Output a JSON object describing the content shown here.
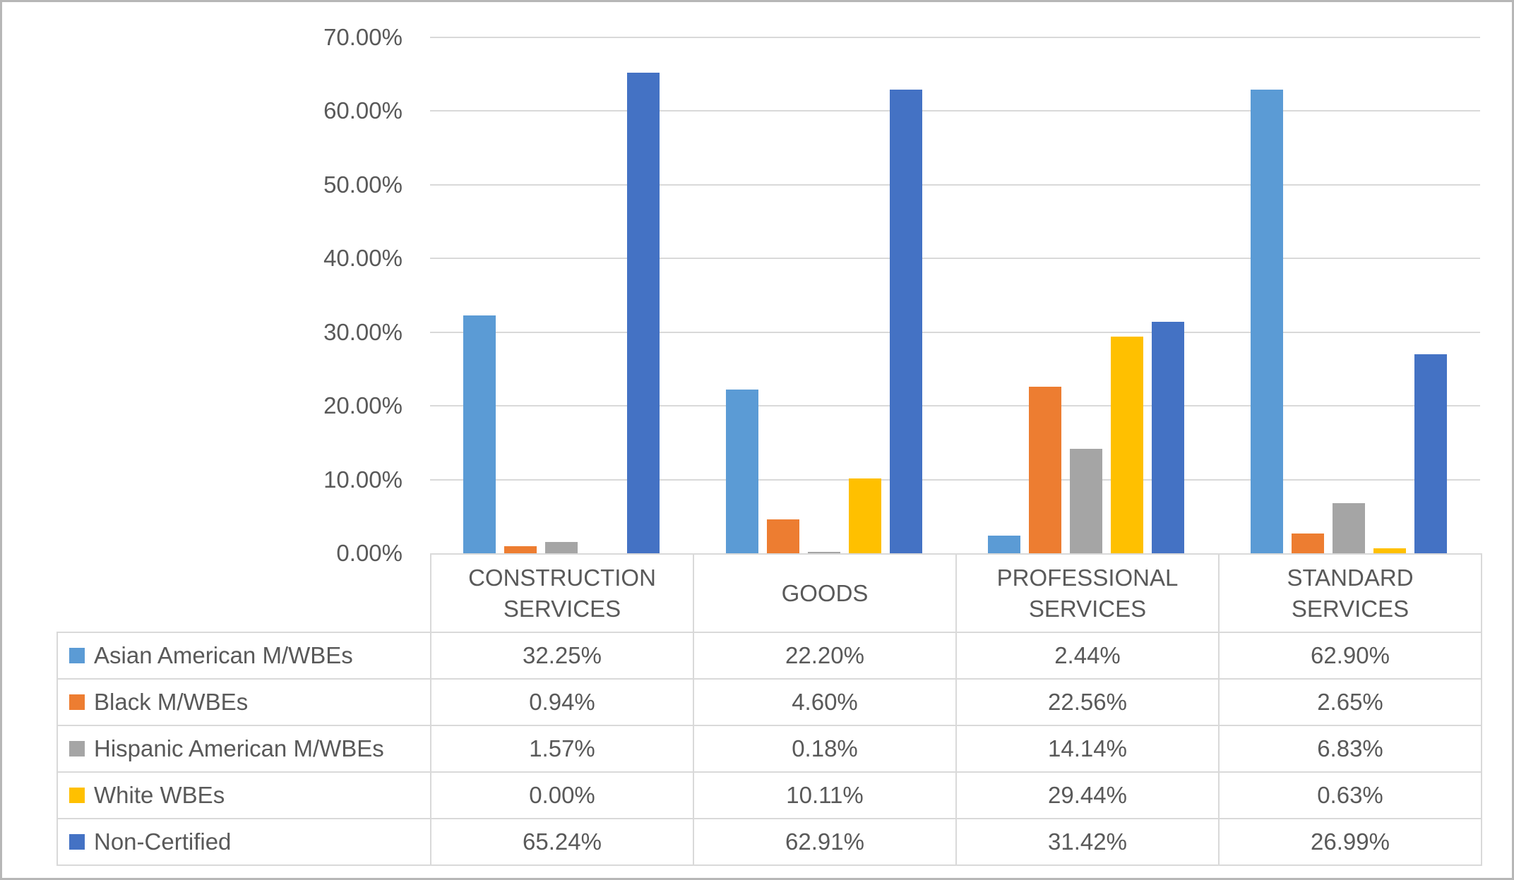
{
  "chart_data": {
    "type": "bar",
    "title": "",
    "categories": [
      "CONSTRUCTION SERVICES",
      "GOODS",
      "PROFESSIONAL SERVICES",
      "STANDARD SERVICES"
    ],
    "series": [
      {
        "name": "Asian American M/WBEs",
        "color": "#5B9BD5",
        "values": [
          32.25,
          22.2,
          2.44,
          62.9
        ]
      },
      {
        "name": "Black M/WBEs",
        "color": "#ED7D31",
        "values": [
          0.94,
          4.6,
          22.56,
          2.65
        ]
      },
      {
        "name": "Hispanic American M/WBEs",
        "color": "#A5A5A5",
        "values": [
          1.57,
          0.18,
          14.14,
          6.83
        ]
      },
      {
        "name": "White WBEs",
        "color": "#FFC000",
        "values": [
          0.0,
          10.11,
          29.44,
          0.63
        ]
      },
      {
        "name": "Non-Certified",
        "color": "#4472C4",
        "values": [
          65.24,
          62.91,
          31.42,
          26.99
        ]
      }
    ],
    "xlabel": "",
    "ylabel": "",
    "ylim": [
      0,
      70
    ],
    "y_axis": {
      "min": 0,
      "max": 70,
      "step": 10,
      "tick_labels": [
        "0.00%",
        "10.00%",
        "20.00%",
        "30.00%",
        "40.00%",
        "50.00%",
        "60.00%",
        "70.00%"
      ]
    },
    "gridlines": true,
    "legend_position": "data-table-left-column",
    "data_table": {
      "column_headers": [
        "CONSTRUCTION\nSERVICES",
        "GOODS",
        "PROFESSIONAL\nSERVICES",
        "STANDARD\nSERVICES"
      ],
      "rows": [
        {
          "label": "Asian American M/WBEs",
          "values": [
            "32.25%",
            "22.20%",
            "2.44%",
            "62.90%"
          ]
        },
        {
          "label": "Black M/WBEs",
          "values": [
            "0.94%",
            "4.60%",
            "22.56%",
            "2.65%"
          ]
        },
        {
          "label": "Hispanic American M/WBEs",
          "values": [
            "1.57%",
            "0.18%",
            "14.14%",
            "6.83%"
          ]
        },
        {
          "label": "White WBEs",
          "values": [
            "0.00%",
            "10.11%",
            "29.44%",
            "0.63%"
          ]
        },
        {
          "label": "Non-Certified",
          "values": [
            "65.24%",
            "62.91%",
            "31.42%",
            "26.99%"
          ]
        }
      ]
    },
    "colors": {
      "text": "#595959",
      "gridline": "#D9D9D9",
      "table_border": "#D9D9D9",
      "outer_border": "#B7B7B7",
      "background": "#FFFFFF"
    }
  }
}
